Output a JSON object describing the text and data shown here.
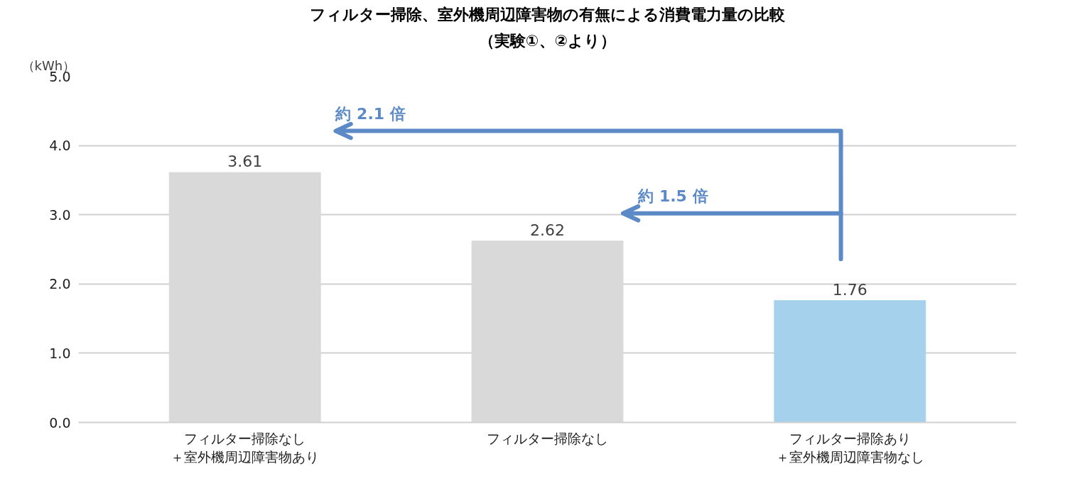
{
  "chart_data": {
    "type": "bar",
    "title": "フィルター掃除、室外機周辺障害物の有無による消費電力量の比較",
    "subtitle": "（実験①、②より）",
    "ylabel": "（kWh）",
    "categories": [
      "フィルター掃除なし＋室外機周辺障害物あり",
      "フィルター掃除なし",
      "フィルター掃除あり＋室外機周辺障害物なし"
    ],
    "values": [
      3.61,
      2.62,
      1.76
    ],
    "colors": [
      "#d9d9d9",
      "#d9d9d9",
      "#a6d1ec"
    ],
    "ylim": [
      0,
      5
    ],
    "yticks": [
      {
        "value": 0,
        "label": "0.0"
      },
      {
        "value": 1,
        "label": "1.0"
      },
      {
        "value": 2,
        "label": "2.0"
      },
      {
        "value": 3,
        "label": "3.0"
      },
      {
        "value": 4,
        "label": "4.0"
      },
      {
        "value": 5,
        "label": "5.0"
      }
    ],
    "grid": "y",
    "data_labels": true,
    "annotations": [
      "約 2.1 倍",
      "約 1.5 倍"
    ]
  }
}
